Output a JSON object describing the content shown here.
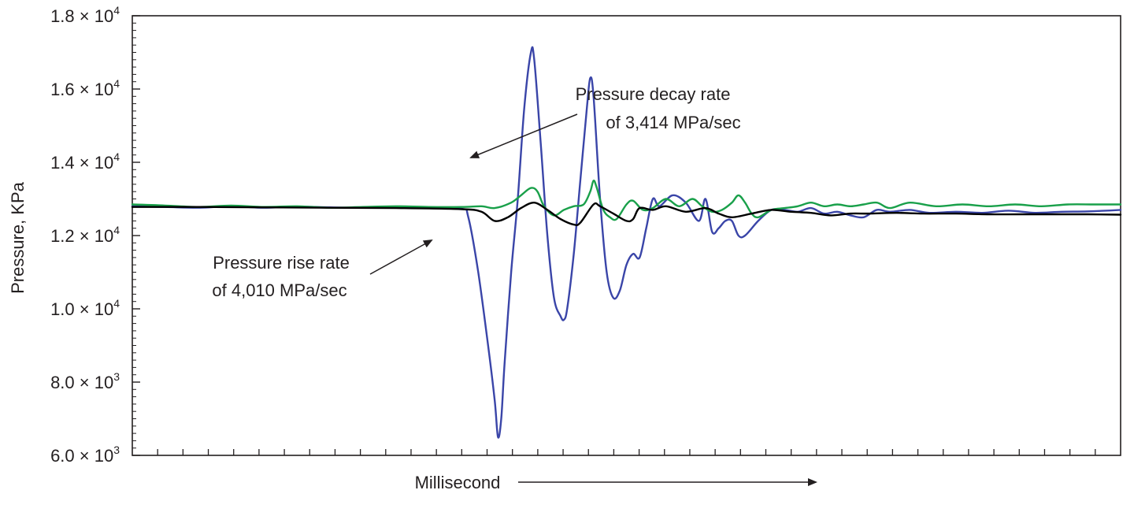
{
  "chart_data": {
    "type": "line",
    "xlabel": "Millisecond",
    "ylabel": "Pressure, KPa",
    "ylim": [
      6000,
      18000
    ],
    "y_ticks": [
      {
        "value": 6000,
        "mantissa": "6.0",
        "times": "×",
        "base": "10",
        "exp": "3"
      },
      {
        "value": 8000,
        "mantissa": "8.0",
        "times": "×",
        "base": "10",
        "exp": "3"
      },
      {
        "value": 10000,
        "mantissa": "1.0",
        "times": "×",
        "base": "10",
        "exp": "4"
      },
      {
        "value": 12000,
        "mantissa": "1.2",
        "times": "×",
        "base": "10",
        "exp": "4"
      },
      {
        "value": 14000,
        "mantissa": "1.4",
        "times": "×",
        "base": "10",
        "exp": "4"
      },
      {
        "value": 16000,
        "mantissa": "1.6",
        "times": "×",
        "base": "10",
        "exp": "4"
      },
      {
        "value": 18000,
        "mantissa": "1.8",
        "times": "×",
        "base": "10",
        "exp": "4"
      }
    ],
    "x_tick_count": 38,
    "grid": false,
    "series": [
      {
        "color": "#3a45a8",
        "points": [
          [
            0,
            12800
          ],
          [
            10,
            12780
          ],
          [
            20,
            12760
          ],
          [
            30,
            12800
          ],
          [
            40,
            12760
          ],
          [
            50,
            12790
          ],
          [
            60,
            12770
          ],
          [
            70,
            12760
          ],
          [
            80,
            12790
          ],
          [
            90,
            12770
          ],
          [
            100,
            12730
          ],
          [
            102,
            12500
          ],
          [
            105,
            11000
          ],
          [
            108,
            9000
          ],
          [
            110,
            7500
          ],
          [
            111,
            6500
          ],
          [
            112,
            7000
          ],
          [
            113,
            8500
          ],
          [
            115,
            11000
          ],
          [
            117,
            13000
          ],
          [
            119,
            15500
          ],
          [
            121,
            17000
          ],
          [
            122,
            16800
          ],
          [
            124,
            14500
          ],
          [
            126,
            12000
          ],
          [
            128,
            10300
          ],
          [
            130,
            9800
          ],
          [
            131,
            9700
          ],
          [
            132,
            10000
          ],
          [
            134,
            11500
          ],
          [
            136,
            13500
          ],
          [
            138,
            15500
          ],
          [
            139,
            16300
          ],
          [
            140,
            15800
          ],
          [
            142,
            13000
          ],
          [
            144,
            11000
          ],
          [
            146,
            10300
          ],
          [
            148,
            10500
          ],
          [
            150,
            11200
          ],
          [
            152,
            11500
          ],
          [
            154,
            11400
          ],
          [
            156,
            12200
          ],
          [
            158,
            13000
          ],
          [
            160,
            12800
          ],
          [
            164,
            13100
          ],
          [
            168,
            12900
          ],
          [
            172,
            12400
          ],
          [
            174,
            13000
          ],
          [
            176,
            12100
          ],
          [
            178,
            12200
          ],
          [
            180,
            12400
          ],
          [
            182,
            12400
          ],
          [
            184,
            12000
          ],
          [
            186,
            12000
          ],
          [
            190,
            12400
          ],
          [
            194,
            12700
          ],
          [
            198,
            12700
          ],
          [
            202,
            12650
          ],
          [
            206,
            12750
          ],
          [
            210,
            12600
          ],
          [
            214,
            12650
          ],
          [
            218,
            12550
          ],
          [
            222,
            12500
          ],
          [
            226,
            12700
          ],
          [
            230,
            12650
          ],
          [
            236,
            12700
          ],
          [
            242,
            12620
          ],
          [
            250,
            12650
          ],
          [
            258,
            12620
          ],
          [
            266,
            12680
          ],
          [
            274,
            12620
          ],
          [
            282,
            12650
          ],
          [
            290,
            12660
          ],
          [
            300,
            12700
          ]
        ]
      },
      {
        "color": "#19a04a",
        "points": [
          [
            0,
            12850
          ],
          [
            10,
            12820
          ],
          [
            20,
            12780
          ],
          [
            30,
            12820
          ],
          [
            40,
            12780
          ],
          [
            50,
            12800
          ],
          [
            60,
            12760
          ],
          [
            70,
            12780
          ],
          [
            80,
            12800
          ],
          [
            90,
            12780
          ],
          [
            100,
            12780
          ],
          [
            106,
            12800
          ],
          [
            110,
            12750
          ],
          [
            115,
            12900
          ],
          [
            118,
            13100
          ],
          [
            121,
            13300
          ],
          [
            123,
            13200
          ],
          [
            125,
            12800
          ],
          [
            128,
            12550
          ],
          [
            131,
            12700
          ],
          [
            134,
            12800
          ],
          [
            137,
            12850
          ],
          [
            139,
            13200
          ],
          [
            140,
            13500
          ],
          [
            141,
            13300
          ],
          [
            143,
            12700
          ],
          [
            145,
            12500
          ],
          [
            147,
            12450
          ],
          [
            150,
            12850
          ],
          [
            152,
            12950
          ],
          [
            155,
            12700
          ],
          [
            158,
            12750
          ],
          [
            162,
            13000
          ],
          [
            166,
            12800
          ],
          [
            170,
            13000
          ],
          [
            173,
            12800
          ],
          [
            176,
            12650
          ],
          [
            179,
            12700
          ],
          [
            182,
            12900
          ],
          [
            184,
            13100
          ],
          [
            186,
            12900
          ],
          [
            188,
            12600
          ],
          [
            190,
            12500
          ],
          [
            194,
            12700
          ],
          [
            198,
            12750
          ],
          [
            202,
            12800
          ],
          [
            206,
            12900
          ],
          [
            210,
            12800
          ],
          [
            214,
            12850
          ],
          [
            218,
            12800
          ],
          [
            222,
            12850
          ],
          [
            226,
            12900
          ],
          [
            230,
            12750
          ],
          [
            236,
            12900
          ],
          [
            244,
            12800
          ],
          [
            252,
            12850
          ],
          [
            260,
            12800
          ],
          [
            268,
            12850
          ],
          [
            276,
            12800
          ],
          [
            284,
            12850
          ],
          [
            292,
            12850
          ],
          [
            300,
            12850
          ]
        ]
      },
      {
        "color": "#000000",
        "points": [
          [
            0,
            12780
          ],
          [
            20,
            12780
          ],
          [
            40,
            12770
          ],
          [
            60,
            12760
          ],
          [
            80,
            12750
          ],
          [
            100,
            12720
          ],
          [
            106,
            12650
          ],
          [
            110,
            12400
          ],
          [
            114,
            12500
          ],
          [
            118,
            12750
          ],
          [
            122,
            12900
          ],
          [
            126,
            12700
          ],
          [
            130,
            12450
          ],
          [
            134,
            12300
          ],
          [
            136,
            12350
          ],
          [
            140,
            12850
          ],
          [
            142,
            12800
          ],
          [
            146,
            12600
          ],
          [
            150,
            12400
          ],
          [
            152,
            12450
          ],
          [
            154,
            12750
          ],
          [
            158,
            12700
          ],
          [
            162,
            12800
          ],
          [
            168,
            12650
          ],
          [
            174,
            12750
          ],
          [
            178,
            12600
          ],
          [
            182,
            12500
          ],
          [
            188,
            12600
          ],
          [
            194,
            12700
          ],
          [
            200,
            12650
          ],
          [
            206,
            12620
          ],
          [
            212,
            12550
          ],
          [
            218,
            12600
          ],
          [
            224,
            12600
          ],
          [
            232,
            12620
          ],
          [
            240,
            12600
          ],
          [
            250,
            12600
          ],
          [
            260,
            12580
          ],
          [
            270,
            12580
          ],
          [
            280,
            12580
          ],
          [
            290,
            12580
          ],
          [
            300,
            12570
          ]
        ]
      }
    ],
    "annotations": [
      {
        "lines": [
          "Pressure decay rate",
          "of 3,414 MPa/sec"
        ]
      },
      {
        "lines": [
          "Pressure rise rate",
          "of 4,010 MPa/sec"
        ]
      }
    ]
  }
}
